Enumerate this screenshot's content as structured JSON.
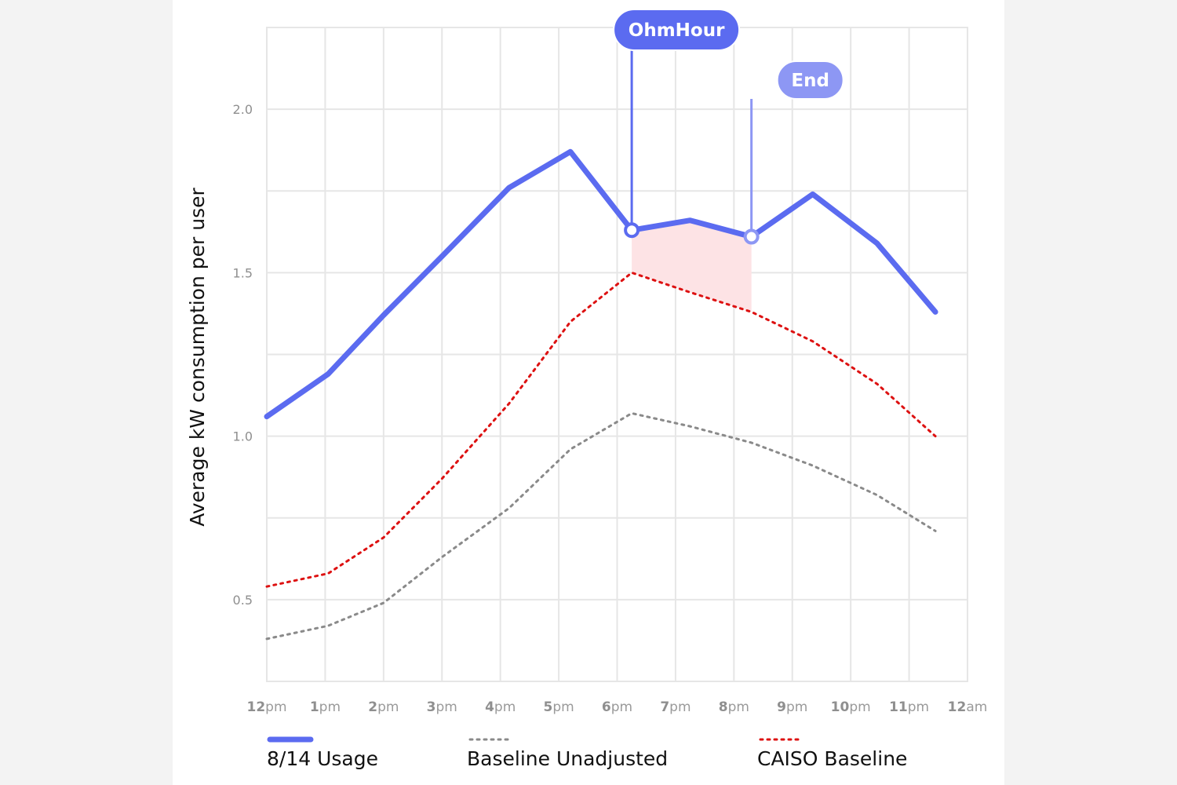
{
  "chart_data": {
    "type": "line",
    "ylabel": "Average kW consumption per user",
    "ylim": [
      0.25,
      2.25
    ],
    "yticks": [
      "2.0",
      "1.5",
      "1.0",
      "0.5"
    ],
    "x_ticks": [
      {
        "hour": "12",
        "suffix": "pm"
      },
      {
        "hour": "1",
        "suffix": "pm"
      },
      {
        "hour": "2",
        "suffix": "pm"
      },
      {
        "hour": "3",
        "suffix": "pm"
      },
      {
        "hour": "4",
        "suffix": "pm"
      },
      {
        "hour": "5",
        "suffix": "pm"
      },
      {
        "hour": "6",
        "suffix": "pm"
      },
      {
        "hour": "7",
        "suffix": "pm"
      },
      {
        "hour": "8",
        "suffix": "pm"
      },
      {
        "hour": "9",
        "suffix": "pm"
      },
      {
        "hour": "10",
        "suffix": "pm"
      },
      {
        "hour": "11",
        "suffix": "pm"
      },
      {
        "hour": "12",
        "suffix": "am"
      }
    ],
    "x": [
      0,
      1.05,
      2,
      3,
      4.15,
      5.2,
      6.25,
      7.25,
      8.3,
      9.35,
      10.45,
      11.45
    ],
    "series": [
      {
        "name": "8/14 Usage",
        "style": "solid",
        "color": "#5b6bf0",
        "values": [
          1.06,
          1.19,
          1.37,
          1.55,
          1.76,
          1.87,
          1.63,
          1.66,
          1.61,
          1.74,
          1.59,
          1.38
        ]
      },
      {
        "name": "Baseline Unadjusted",
        "style": "dotted",
        "color": "#8a8a8a",
        "values": [
          0.38,
          0.42,
          0.49,
          0.63,
          0.78,
          0.96,
          1.07,
          1.03,
          0.98,
          0.91,
          0.82,
          0.71
        ]
      },
      {
        "name": "CAISO Baseline",
        "style": "dotted",
        "color": "#dd1111",
        "values": [
          0.54,
          0.58,
          0.69,
          0.87,
          1.1,
          1.35,
          1.5,
          1.44,
          1.38,
          1.29,
          1.16,
          1.0
        ]
      }
    ],
    "event": {
      "start_x": 6.25,
      "end_x": 8.3,
      "start_label": "OhmHour",
      "end_label": "End",
      "shade_color": "#fde3e5",
      "start_color": "#5b6bf0",
      "end_color": "#8d97f4"
    },
    "grid": true,
    "legend_position": "bottom"
  }
}
